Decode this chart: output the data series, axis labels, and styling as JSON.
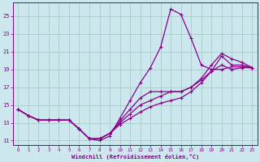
{
  "xlabel": "Windchill (Refroidissement éolien,°C)",
  "xlim": [
    -0.5,
    23.5
  ],
  "ylim": [
    10.5,
    26.5
  ],
  "yticks": [
    11,
    13,
    15,
    17,
    19,
    21,
    23,
    25
  ],
  "xticks": [
    0,
    1,
    2,
    3,
    4,
    5,
    6,
    7,
    8,
    9,
    10,
    11,
    12,
    13,
    14,
    15,
    16,
    17,
    18,
    19,
    20,
    21,
    22,
    23
  ],
  "background_color": "#cce8ee",
  "line_color": "#880088",
  "grid_color": "#aacccc",
  "lines": [
    [
      14.5,
      13.8,
      13.3,
      13.3,
      13.3,
      13.3,
      12.3,
      11.2,
      11.0,
      11.5,
      13.5,
      15.5,
      17.5,
      19.2,
      21.5,
      25.8,
      25.2,
      22.5,
      19.5,
      19.0,
      19.0,
      19.3,
      19.3,
      19.2
    ],
    [
      14.5,
      13.8,
      13.3,
      13.3,
      13.3,
      13.3,
      12.3,
      11.2,
      11.2,
      11.8,
      13.2,
      14.5,
      15.8,
      16.5,
      16.5,
      16.5,
      16.5,
      17.0,
      18.0,
      19.5,
      20.8,
      20.2,
      19.8,
      19.2
    ],
    [
      14.5,
      13.8,
      13.3,
      13.3,
      13.3,
      13.3,
      12.3,
      11.2,
      11.2,
      11.8,
      13.0,
      14.0,
      15.0,
      15.5,
      16.0,
      16.5,
      16.5,
      17.0,
      17.8,
      18.8,
      20.5,
      19.5,
      19.5,
      19.2
    ],
    [
      14.5,
      13.8,
      13.3,
      13.3,
      13.3,
      13.3,
      12.3,
      11.2,
      11.2,
      11.8,
      12.8,
      13.5,
      14.2,
      14.8,
      15.2,
      15.5,
      15.8,
      16.5,
      17.5,
      18.8,
      19.5,
      19.0,
      19.2,
      19.2
    ]
  ]
}
